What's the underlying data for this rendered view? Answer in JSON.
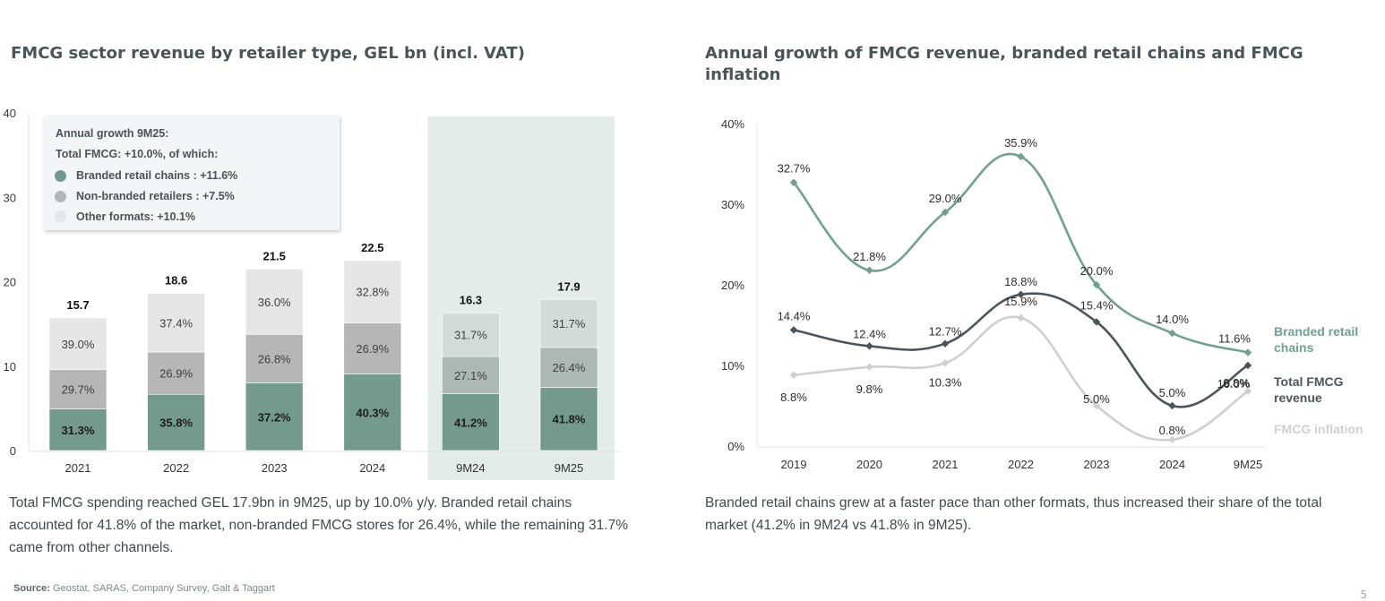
{
  "left": {
    "title": "FMCG sector revenue by retailer type, GEL bn (incl. VAT)",
    "legend_box": {
      "heading": "Annual growth 9M25:",
      "subheading": "Total FMCG: +10.0%, of which:",
      "items": [
        {
          "label": "Branded retail chains : +11.6%",
          "color": "#729a8c"
        },
        {
          "label": "Non-branded retailers : +7.5%",
          "color": "#b5b5b5"
        },
        {
          "label": "Other formats: +10.1%",
          "color": "#e6e6e6"
        }
      ]
    },
    "paragraph": "Total FMCG spending reached GEL 17.9bn in 9M25, up by 10.0% y/y. Branded retail chains accounted for 41.8% of the market, non-branded FMCG stores for 26.4%, while the remaining 31.7% came from other channels."
  },
  "right": {
    "title": "Annual growth of FMCG revenue, branded retail chains and FMCG inflation",
    "paragraph": "Branded retail chains grew at a faster pace than other formats, thus increased their share of the total market (41.2% in 9M24 vs 41.8% in 9M25)."
  },
  "source": {
    "label": "Source:",
    "text": " Geostat, SARAS, Company Survey, Galt & Taggart"
  },
  "page_number": "5",
  "chart_data": [
    {
      "type": "bar",
      "stacked": true,
      "title": "FMCG sector revenue by retailer type, GEL bn (incl. VAT)",
      "xlabel": "",
      "ylabel": "",
      "ylim": [
        0,
        40
      ],
      "yticks": [
        0,
        10,
        20,
        30,
        40
      ],
      "categories": [
        "2021",
        "2022",
        "2023",
        "2024",
        "9M24",
        "9M25"
      ],
      "highlighted_categories": [
        "9M24",
        "9M25"
      ],
      "totals": [
        15.7,
        18.6,
        21.5,
        22.5,
        16.3,
        17.9
      ],
      "total_labels": [
        "15.7",
        "18.6",
        "21.5",
        "22.5",
        "16.3",
        "17.9"
      ],
      "series": [
        {
          "name": "Branded retail chains",
          "color": "#739a8c",
          "share_pct": [
            31.3,
            35.8,
            37.2,
            40.3,
            41.2,
            41.8
          ],
          "labels": [
            "31.3%",
            "35.8%",
            "37.2%",
            "40.3%",
            "41.2%",
            "41.8%"
          ]
        },
        {
          "name": "Non-branded retailers",
          "color": "#b6b6b6",
          "color_highlight": "#adb7b3",
          "share_pct": [
            29.7,
            26.9,
            26.8,
            26.9,
            27.1,
            26.4
          ],
          "labels": [
            "29.7%",
            "26.9%",
            "26.8%",
            "26.9%",
            "27.1%",
            "26.4%"
          ]
        },
        {
          "name": "Other formats",
          "color": "#e6e6e6",
          "color_highlight": "#d3dcd8",
          "share_pct": [
            39.0,
            37.4,
            36.0,
            32.8,
            31.7,
            31.7
          ],
          "labels": [
            "39.0%",
            "37.4%",
            "36.0%",
            "32.8%",
            "31.7%",
            "31.7%"
          ]
        }
      ],
      "legend": "top-left (boxed)"
    },
    {
      "type": "line",
      "title": "Annual growth of FMCG revenue, branded retail chains and FMCG inflation",
      "xlabel": "",
      "ylabel": "",
      "ylim": [
        0,
        40
      ],
      "yticks": [
        "0%",
        "10%",
        "20%",
        "30%",
        "40%"
      ],
      "categories": [
        "2019",
        "2020",
        "2021",
        "2022",
        "2023",
        "2024",
        "9M25"
      ],
      "series": [
        {
          "name": "Branded retail chains",
          "color": "#72a08f",
          "values": [
            32.7,
            21.8,
            29.0,
            35.9,
            20.0,
            14.0,
            11.6
          ],
          "labels": [
            "32.7%",
            "21.8%",
            "29.0%",
            "35.9%",
            "20.0%",
            "14.0%",
            "11.6%"
          ]
        },
        {
          "name": "Total FMCG revenue",
          "color": "#4a565b",
          "values": [
            14.4,
            12.4,
            12.7,
            18.8,
            15.4,
            5.0,
            10.0
          ],
          "labels": [
            "14.4%",
            "12.4%",
            "12.7%",
            "18.8%",
            "15.4%",
            "5.0%",
            "10.0%"
          ]
        },
        {
          "name": "FMCG inflation",
          "color": "#cfcfcf",
          "values": [
            8.8,
            9.8,
            10.3,
            15.9,
            5.0,
            0.8,
            6.8
          ],
          "labels": [
            "8.8%",
            "9.8%",
            "10.3%",
            "15.9%",
            "5.0%",
            "0.8%",
            "6.8%"
          ]
        }
      ],
      "legend_labels": [
        {
          "line1": "Branded retail",
          "line2": "chains",
          "color": "#72a08f"
        },
        {
          "line1": "Total FMCG",
          "line2": "revenue",
          "color": "#4a565b"
        },
        {
          "line1": "FMCG inflation",
          "line2": "",
          "color": "#d0d0d0"
        }
      ],
      "legend": "right (inline end labels)",
      "grid": false
    }
  ]
}
